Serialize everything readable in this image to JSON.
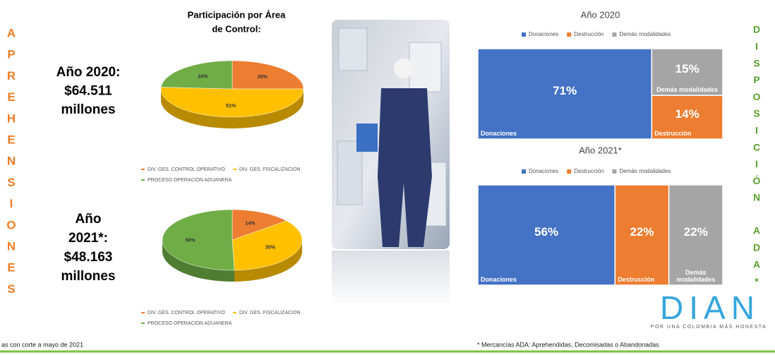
{
  "left_side": [
    "A",
    "P",
    "R",
    "E",
    "H",
    "E",
    "N",
    "S",
    "I",
    "O",
    "N",
    "E",
    "S"
  ],
  "right_side": {
    "word1": [
      "D",
      "I",
      "S",
      "P",
      "O",
      "S",
      "I",
      "C",
      "I",
      "Ó",
      "N"
    ],
    "word2": [
      "A",
      "D",
      "A",
      "*"
    ]
  },
  "pie_title": [
    "Participación por Área",
    "de Control:"
  ],
  "year_2020_label": [
    "Año 2020:",
    "$64.511",
    "millones"
  ],
  "year_2021_label": [
    "Año",
    "2021*:",
    "$48.163",
    "millones"
  ],
  "chart_data": [
    {
      "type": "pie",
      "categories": [
        "DIV. GES. CONTROL OPERATIVO",
        "DIV. GES. FISCALIZACION",
        "PROCESO OPERACIÓN ADUANERA"
      ],
      "values": [
        25,
        51,
        24
      ],
      "value_labels": [
        "25%",
        "51%",
        "24%"
      ],
      "colors": [
        "#ed7d31",
        "#ffc000",
        "#70ad47"
      ]
    },
    {
      "type": "pie",
      "categories": [
        "DIV. GES. CONTROL OPERATIVO",
        "DIV. GES. FISCALIZACION",
        "PROCESO OPERACIÓN ADUANERA"
      ],
      "values": [
        14,
        35,
        50
      ],
      "value_labels": [
        "14%",
        "35%",
        "50%"
      ],
      "colors": [
        "#ed7d31",
        "#ffc000",
        "#70ad47"
      ]
    },
    {
      "type": "treemap",
      "title": "Año 2020",
      "categories": [
        "Donaciones",
        "Destrucción",
        "Demás modalidades"
      ],
      "values": [
        71,
        14,
        15
      ],
      "value_labels": [
        "71%",
        "14%",
        "15%"
      ],
      "colors": [
        "#4472c4",
        "#ed7d31",
        "#a5a5a5"
      ],
      "legend": "top"
    },
    {
      "type": "treemap",
      "title": "Año 2021*",
      "categories": [
        "Donaciones",
        "Destrucción",
        "Demás modalidades"
      ],
      "values": [
        56,
        22,
        22
      ],
      "value_labels": [
        "56%",
        "22%",
        "22%"
      ],
      "colors": [
        "#4472c4",
        "#ed7d31",
        "#a5a5a5"
      ],
      "legend": "top"
    }
  ],
  "footnote_left": "as con corte a mayo de 2021",
  "footnote_right": "* Mercancías ADA: Aprehendidas, Decomisadas o Abandonadas",
  "logo": {
    "text": "DIAN",
    "tagline": "POR UNA COLOMBIA MÁS HONESTA"
  }
}
